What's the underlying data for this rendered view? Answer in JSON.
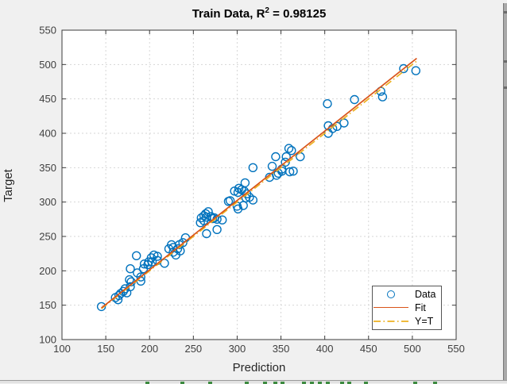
{
  "window": {
    "figure_background": "#f0f0f0"
  },
  "title": {
    "prefix": "Train Data, R",
    "superscript": "2",
    "suffix": " = 0.98125"
  },
  "axes": {
    "xlabel": "Prediction",
    "ylabel": "Target"
  },
  "legend": {
    "items": [
      {
        "label": "Data",
        "marker": "circle-icon"
      },
      {
        "label": "Fit",
        "marker": "solid-line-icon"
      },
      {
        "label": "Y=T",
        "marker": "dash-dot-line-icon"
      }
    ]
  },
  "colors": {
    "data": "#0072BD",
    "fit": "#D95319",
    "yt": "#EDB120",
    "grid": "#d6d6d6",
    "axis": "#3b3b3b",
    "tick_text": "#3f3f3f",
    "plot_bg": "#ffffff",
    "figure_bg": "#f0f0f0"
  },
  "chart_data": {
    "type": "scatter",
    "title": "Train Data, R^2 = 0.98125",
    "xlabel": "Prediction",
    "ylabel": "Target",
    "xlim": [
      100,
      550
    ],
    "ylim": [
      100,
      550
    ],
    "xticks": [
      100,
      150,
      200,
      250,
      300,
      350,
      400,
      450,
      500,
      550
    ],
    "yticks": [
      100,
      150,
      200,
      250,
      300,
      350,
      400,
      450,
      500,
      550
    ],
    "grid": true,
    "legend_position": "lower-right-inside",
    "series": [
      {
        "name": "Data",
        "type": "scatter",
        "marker": "open-circle",
        "points": [
          [
            145,
            148
          ],
          [
            161,
            161
          ],
          [
            164,
            158
          ],
          [
            165,
            164
          ],
          [
            167,
            167
          ],
          [
            170,
            170
          ],
          [
            172,
            174
          ],
          [
            174,
            168
          ],
          [
            178,
            177
          ],
          [
            179,
            184
          ],
          [
            177,
            187
          ],
          [
            178,
            203
          ],
          [
            185,
            222
          ],
          [
            186,
            197
          ],
          [
            190,
            185
          ],
          [
            190,
            191
          ],
          [
            193,
            203
          ],
          [
            194,
            210
          ],
          [
            198,
            209
          ],
          [
            199,
            213
          ],
          [
            202,
            219
          ],
          [
            203,
            213
          ],
          [
            205,
            223
          ],
          [
            209,
            215
          ],
          [
            209,
            221
          ],
          [
            217,
            211
          ],
          [
            222,
            232
          ],
          [
            225,
            238
          ],
          [
            227,
            227
          ],
          [
            227,
            234
          ],
          [
            230,
            223
          ],
          [
            232,
            232
          ],
          [
            234,
            238
          ],
          [
            235,
            229
          ],
          [
            238,
            241
          ],
          [
            241,
            248
          ],
          [
            265,
            254
          ],
          [
            258,
            270
          ],
          [
            259,
            277
          ],
          [
            262,
            273
          ],
          [
            262,
            280
          ],
          [
            264,
            283
          ],
          [
            265,
            278
          ],
          [
            267,
            286
          ],
          [
            270,
            279
          ],
          [
            272,
            276
          ],
          [
            274,
            277
          ],
          [
            277,
            260
          ],
          [
            277,
            275
          ],
          [
            283,
            274
          ],
          [
            290,
            301
          ],
          [
            292,
            302
          ],
          [
            297,
            316
          ],
          [
            300,
            294
          ],
          [
            301,
            290
          ],
          [
            301,
            314
          ],
          [
            302,
            320
          ],
          [
            305,
            318
          ],
          [
            307,
            295
          ],
          [
            308,
            316
          ],
          [
            309,
            328
          ],
          [
            310,
            306
          ],
          [
            311,
            312
          ],
          [
            314,
            307
          ],
          [
            318,
            303
          ],
          [
            318,
            350
          ],
          [
            337,
            336
          ],
          [
            340,
            352
          ],
          [
            344,
            366
          ],
          [
            345,
            339
          ],
          [
            347,
            342
          ],
          [
            351,
            345
          ],
          [
            351,
            348
          ],
          [
            355,
            358
          ],
          [
            356,
            366
          ],
          [
            359,
            378
          ],
          [
            360,
            344
          ],
          [
            362,
            375
          ],
          [
            364,
            345
          ],
          [
            372,
            366
          ],
          [
            403,
            443
          ],
          [
            404,
            400
          ],
          [
            404,
            411
          ],
          [
            409,
            407
          ],
          [
            414,
            410
          ],
          [
            422,
            415
          ],
          [
            434,
            449
          ],
          [
            464,
            461
          ],
          [
            466,
            453
          ],
          [
            490,
            494
          ],
          [
            504,
            491
          ]
        ]
      },
      {
        "name": "Y=T",
        "type": "line",
        "style": "dash-dot",
        "points": [
          [
            145,
            145
          ],
          [
            505,
            505
          ]
        ]
      },
      {
        "name": "Fit",
        "type": "line",
        "style": "solid",
        "points": [
          [
            145,
            146
          ],
          [
            505,
            509
          ]
        ]
      }
    ]
  },
  "artifacts": {
    "right_strip_marks_y": [
      10,
      72,
      105
    ],
    "bottom_strip_dashes_x": [
      183,
      227,
      262,
      308,
      331,
      344,
      353,
      380,
      390,
      400,
      410,
      428,
      437,
      458,
      520,
      545
    ]
  }
}
